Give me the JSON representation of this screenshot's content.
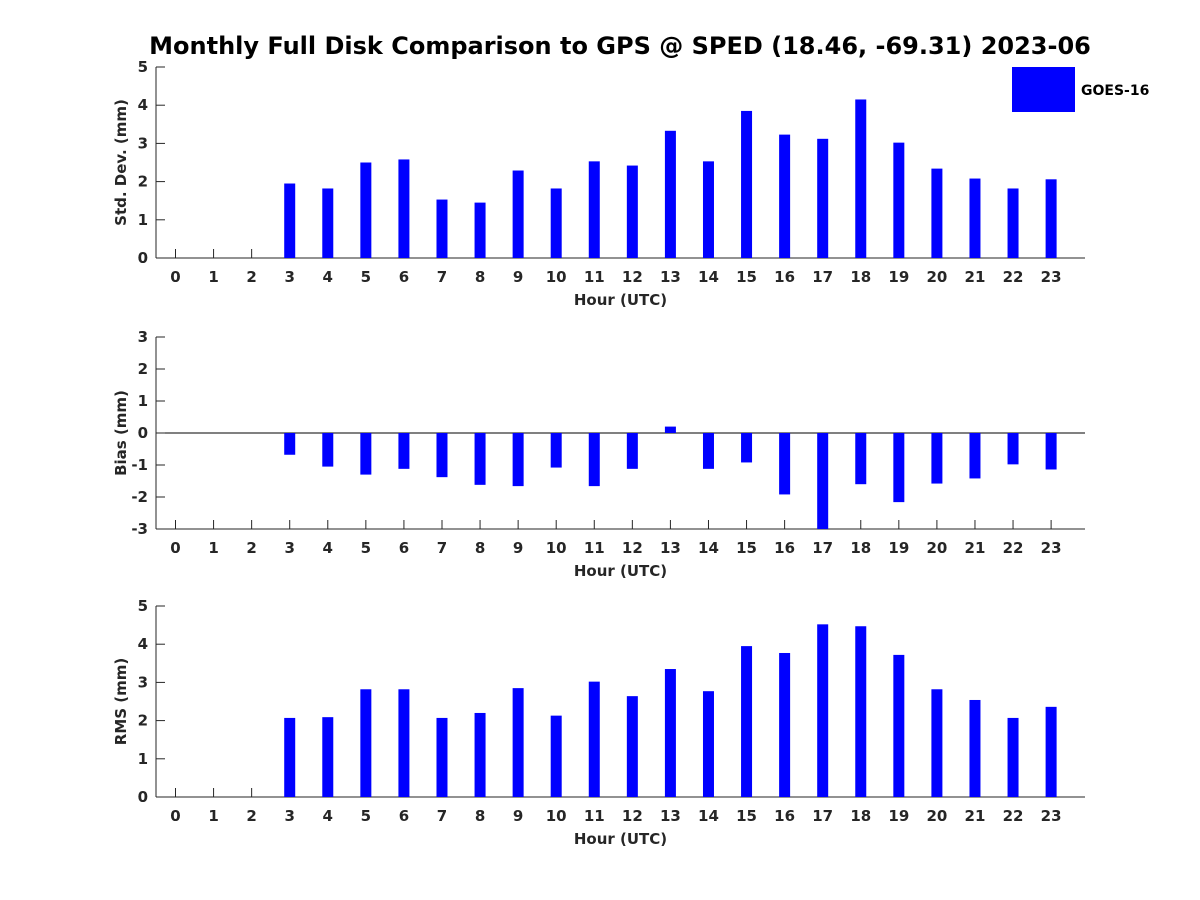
{
  "title": "Monthly Full Disk Comparison to GPS @ SPED (18.46, -69.31) 2023-06",
  "legend": {
    "label": "GOES-16",
    "color": "#0000ff",
    "placement": "top-right"
  },
  "chart_data": [
    {
      "type": "bar",
      "ylabel": "Std. Dev. (mm)",
      "xlabel": "Hour (UTC)",
      "categories": [
        "0",
        "1",
        "2",
        "3",
        "4",
        "5",
        "6",
        "7",
        "8",
        "9",
        "10",
        "11",
        "12",
        "13",
        "14",
        "15",
        "16",
        "17",
        "18",
        "19",
        "20",
        "21",
        "22",
        "23"
      ],
      "ylim": [
        0,
        5
      ],
      "yticks": [
        0,
        1,
        2,
        3,
        4,
        5
      ],
      "grid": false,
      "series": [
        {
          "name": "GOES-16",
          "color": "#0000ff",
          "values": [
            null,
            null,
            null,
            1.95,
            1.82,
            2.5,
            2.58,
            1.53,
            1.45,
            2.29,
            1.82,
            2.53,
            2.42,
            3.33,
            2.53,
            3.85,
            3.23,
            3.12,
            4.15,
            3.02,
            2.34,
            2.08,
            1.82,
            2.06
          ]
        }
      ]
    },
    {
      "type": "bar",
      "ylabel": "Bias (mm)",
      "xlabel": "Hour (UTC)",
      "categories": [
        "0",
        "1",
        "2",
        "3",
        "4",
        "5",
        "6",
        "7",
        "8",
        "9",
        "10",
        "11",
        "12",
        "13",
        "14",
        "15",
        "16",
        "17",
        "18",
        "19",
        "20",
        "21",
        "22",
        "23"
      ],
      "ylim": [
        -3,
        3
      ],
      "yticks": [
        -3,
        -2,
        -1,
        0,
        1,
        2,
        3
      ],
      "grid": false,
      "series": [
        {
          "name": "GOES-16",
          "color": "#0000ff",
          "values": [
            null,
            null,
            null,
            -0.68,
            -1.05,
            -1.3,
            -1.12,
            -1.38,
            -1.62,
            -1.66,
            -1.08,
            -1.66,
            -1.12,
            0.2,
            -1.12,
            -0.92,
            -1.92,
            -3.0,
            -1.6,
            -2.16,
            -1.58,
            -1.42,
            -0.98,
            -1.14
          ]
        }
      ]
    },
    {
      "type": "bar",
      "ylabel": "RMS (mm)",
      "xlabel": "Hour (UTC)",
      "categories": [
        "0",
        "1",
        "2",
        "3",
        "4",
        "5",
        "6",
        "7",
        "8",
        "9",
        "10",
        "11",
        "12",
        "13",
        "14",
        "15",
        "16",
        "17",
        "18",
        "19",
        "20",
        "21",
        "22",
        "23"
      ],
      "ylim": [
        0,
        5
      ],
      "yticks": [
        0,
        1,
        2,
        3,
        4,
        5
      ],
      "grid": false,
      "series": [
        {
          "name": "GOES-16",
          "color": "#0000ff",
          "values": [
            null,
            null,
            null,
            2.07,
            2.09,
            2.82,
            2.82,
            2.07,
            2.2,
            2.85,
            2.13,
            3.02,
            2.64,
            3.35,
            2.77,
            3.95,
            3.77,
            4.52,
            4.47,
            3.72,
            2.82,
            2.54,
            2.07,
            2.36
          ]
        }
      ]
    }
  ]
}
